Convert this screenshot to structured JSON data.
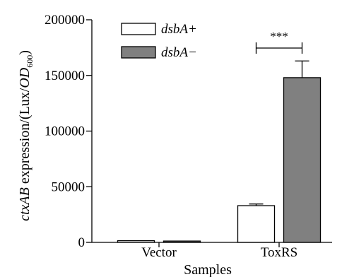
{
  "chart_data": {
    "type": "bar",
    "categories": [
      "Vector",
      "ToxRS"
    ],
    "series": [
      {
        "name": "dsbA+",
        "values": [
          1500,
          33000
        ],
        "errors": [
          0,
          1500
        ],
        "color": "#ffffff"
      },
      {
        "name": "dsbA−",
        "values": [
          1200,
          148000
        ],
        "errors": [
          0,
          15000
        ],
        "color": "#808080"
      }
    ],
    "xlabel": "Samples",
    "ylabel": {
      "italic": "ctxAB",
      "text": " expression/(Lux/",
      "italic2": "OD",
      "sub": "600",
      "close": ")"
    },
    "ylim": [
      0,
      200000
    ],
    "yticks": [
      "0",
      "50000",
      "100000",
      "150000",
      "200000"
    ],
    "legend_placement": "top-left",
    "significance": {
      "label": "***",
      "category": "ToxRS"
    }
  }
}
